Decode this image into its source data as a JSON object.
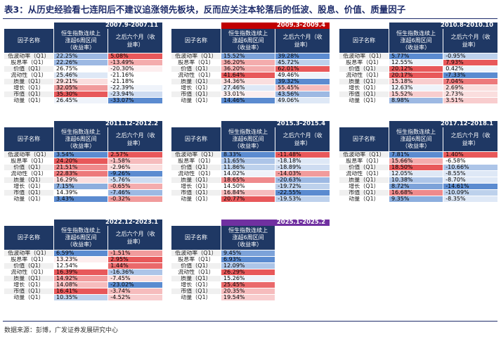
{
  "title": "表3：从历史经验看七连阳后不建议追涨领先板块，反而应关注本轮落后的低波、股息、价值、质量因子",
  "source": "数据来源：彭博，广发证券发展研究中心",
  "header": {
    "factor": "因子名称",
    "col1_line1": "恒生指数连续上",
    "col1_line2": "涨超6周区间",
    "col1_line3": "（收益率）",
    "col2_line1": "之后六个月（收",
    "col2_line2": "益率）"
  },
  "colors": {
    "header_bg": "#1f3864",
    "period_blue": "#1f3864",
    "period_red": "#c00000",
    "period_purple": "#7030a0",
    "heat_high": "#5b8bd0",
    "heat_low": "#e8585a"
  },
  "factors": [
    "低波动率（Q1）",
    "股息率（Q1）",
    "价值（Q1）",
    "流动性（Q1）",
    "质量（Q1）",
    "增长（Q1）",
    "市值（Q1）",
    "动量（Q1）"
  ],
  "panels": [
    {
      "period": "2007.9-2007.11",
      "period_color": "blue",
      "v1": [
        "22.25%",
        "22.26%",
        "26.75%",
        "25.46%",
        "29.21%",
        "32.05%",
        "35.30%",
        "26.45%"
      ],
      "v2": [
        "5.08%",
        "-13.49%",
        "-20.30%",
        "-21.16%",
        "-21.18%",
        "-22.39%",
        "-23.94%",
        "-33.07%"
      ],
      "r1": [
        0.2,
        0.2,
        0.5,
        0.4,
        0.6,
        0.8,
        1.0,
        0.45
      ],
      "r2": [
        1.0,
        0.75,
        0.55,
        0.5,
        0.5,
        0.45,
        0.35,
        0.0
      ]
    },
    {
      "period": "2009.3-2009.4",
      "period_color": "red",
      "v1": [
        "15.52%",
        "36.20%",
        "36.20%",
        "41.64%",
        "34.36%",
        "27.46%",
        "33.01%",
        "14.46%"
      ],
      "v2": [
        "39.28%",
        "45.72%",
        "62.01%",
        "49.46%",
        "39.32%",
        "55.45%",
        "43.56%",
        "49.06%"
      ],
      "r1": [
        0.1,
        0.75,
        0.75,
        1.0,
        0.6,
        0.4,
        0.55,
        0.0
      ],
      "r2": [
        0.0,
        0.3,
        1.0,
        0.45,
        0.0,
        0.7,
        0.2,
        0.4
      ]
    },
    {
      "period": "2010.8-2010.10",
      "period_color": "blue",
      "v1": [
        "5.77%",
        "12.55%",
        "20.12%",
        "20.17%",
        "15.18%",
        "12.63%",
        "15.52%",
        "8.98%"
      ],
      "v2": [
        "-0.95%",
        "7.93%",
        "0.42%",
        "-7.33%",
        "7.04%",
        "2.69%",
        "2.73%",
        "3.51%"
      ],
      "r1": [
        0.0,
        0.45,
        1.0,
        1.0,
        0.65,
        0.45,
        0.65,
        0.2
      ],
      "r2": [
        0.3,
        1.0,
        0.45,
        0.0,
        0.9,
        0.6,
        0.6,
        0.65
      ]
    },
    {
      "period": "2011.12-2012.2",
      "period_color": "blue",
      "v1": [
        "3.54%",
        "24.20%",
        "21.51%",
        "22.83%",
        "16.29%",
        "7.15%",
        "14.39%",
        "3.43%"
      ],
      "v2": [
        "2.57%",
        "-1.58%",
        "-2.96%",
        "-9.26%",
        "-5.76%",
        "-0.65%",
        "-7.46%",
        "-0.32%"
      ],
      "r1": [
        0.0,
        1.0,
        0.85,
        0.9,
        0.6,
        0.15,
        0.5,
        0.0
      ],
      "r2": [
        1.0,
        0.7,
        0.6,
        0.0,
        0.35,
        0.75,
        0.2,
        0.8
      ]
    },
    {
      "period": "2015.3-2015.4",
      "period_color": "blue",
      "v1": [
        "8.33%",
        "11.65%",
        "11.86%",
        "14.02%",
        "18.65%",
        "14.50%",
        "16.84%",
        "20.77%"
      ],
      "v2": [
        "-11.48%",
        "-18.18%",
        "-18.89%",
        "-14.03%",
        "-20.63%",
        "-19.72%",
        "-22.55%",
        "-19.53%"
      ],
      "r1": [
        0.0,
        0.25,
        0.3,
        0.45,
        0.85,
        0.5,
        0.7,
        1.0
      ],
      "r2": [
        1.0,
        0.4,
        0.35,
        0.8,
        0.2,
        0.3,
        0.0,
        0.3
      ]
    },
    {
      "period": "2017.12-2018.1",
      "period_color": "blue",
      "v1": [
        "7.81%",
        "15.66%",
        "18.50%",
        "12.05%",
        "10.38%",
        "8.72%",
        "16.68%",
        "9.35%"
      ],
      "v2": [
        "1.40%",
        "-6.58%",
        "-10.66%",
        "-8.55%",
        "-8.70%",
        "-14.61%",
        "-10.09%",
        "-8.35%"
      ],
      "r1": [
        0.0,
        0.75,
        1.0,
        0.4,
        0.25,
        0.1,
        0.85,
        0.15
      ],
      "r2": [
        1.0,
        0.5,
        0.25,
        0.4,
        0.4,
        0.0,
        0.3,
        0.4
      ]
    },
    {
      "period": "2022.12-2023.1",
      "period_color": "blue",
      "v1": [
        "6.59%",
        "13.23%",
        "12.54%",
        "16.39%",
        "14.92%",
        "14.08%",
        "16.41%",
        "10.35%"
      ],
      "v2": [
        "-1.51%",
        "2.95%",
        "1.44%",
        "-16.36%",
        "-7.45%",
        "-23.02%",
        "-3.74%",
        "-4.52%"
      ],
      "r1": [
        0.0,
        0.55,
        0.5,
        1.0,
        0.8,
        0.7,
        1.0,
        0.3
      ],
      "r2": [
        0.8,
        1.0,
        0.95,
        0.25,
        0.6,
        0.0,
        0.7,
        0.65
      ]
    },
    {
      "period": "2025.1-2025.2",
      "period_color": "purple",
      "v1": [
        "9.45%",
        "6.93%",
        "12.09%",
        "26.29%",
        "15.26%",
        "25.45%",
        "20.35%",
        "19.54%"
      ],
      "v2": null,
      "r1": [
        0.1,
        0.0,
        0.25,
        1.0,
        0.45,
        0.95,
        0.7,
        0.65
      ],
      "r2": null
    }
  ]
}
